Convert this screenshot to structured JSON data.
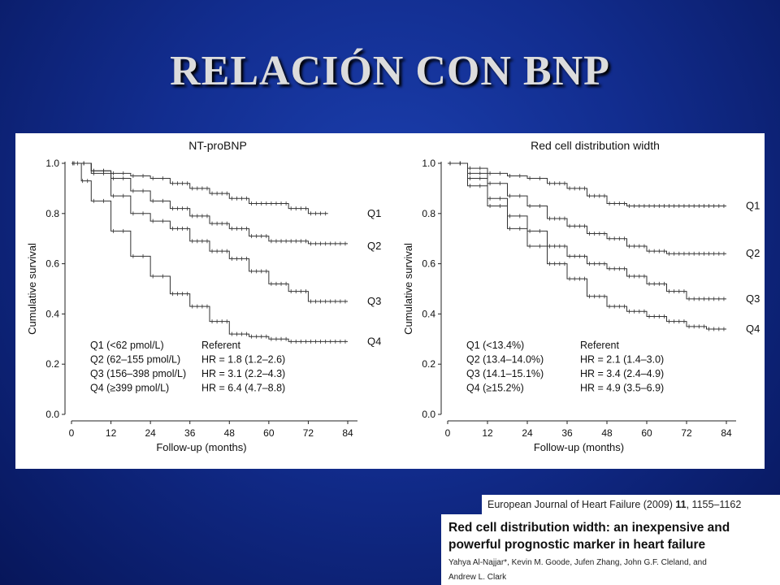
{
  "slide": {
    "title": "RELACIÓN CON BNP"
  },
  "reference": {
    "journal": "European Journal of Heart Failure (2009)",
    "volume": "11",
    "pages": ", 1155–1162",
    "article_title_line1": "Red cell distribution width: an inexpensive and",
    "article_title_line2": "powerful prognostic marker in heart failure",
    "authors_line1": "Yahya Al-Najjar*, Kevin M. Goode, Jufen Zhang, John G.F. Cleland, and",
    "authors_line2": "Andrew L. Clark"
  },
  "chart_data": [
    {
      "type": "line",
      "title": "NT-proBNP",
      "xlabel": "Follow-up (months)",
      "ylabel": "Cumulative survival",
      "xlim": [
        0,
        84
      ],
      "ylim": [
        0.0,
        1.0
      ],
      "xticks": [
        "0",
        "12",
        "24",
        "36",
        "48",
        "60",
        "72",
        "84"
      ],
      "yticks": [
        "0.0",
        "0.2",
        "0.4",
        "0.6",
        "0.8",
        "1.0"
      ],
      "legend": [
        {
          "group": "Q1 (<62 pmol/L)",
          "hr": "Referent"
        },
        {
          "group": "Q2 (62–155 pmol/L)",
          "hr": "HR = 1.8 (1.2–2.6)"
        },
        {
          "group": "Q3 (156–398 pmol/L)",
          "hr": "HR = 3.1 (2.2–4.3)"
        },
        {
          "group": "Q4 (≥399 pmol/L)",
          "hr": "HR = 6.4 (4.7–8.8)"
        }
      ],
      "series": [
        {
          "name": "Q1",
          "x": [
            0,
            6,
            12,
            18,
            24,
            30,
            36,
            42,
            48,
            54,
            60,
            66,
            72,
            78
          ],
          "y": [
            1.0,
            0.97,
            0.96,
            0.95,
            0.94,
            0.92,
            0.9,
            0.88,
            0.86,
            0.84,
            0.84,
            0.82,
            0.8,
            0.8
          ]
        },
        {
          "name": "Q2",
          "x": [
            0,
            6,
            12,
            18,
            24,
            30,
            36,
            42,
            48,
            54,
            60,
            66,
            72,
            78,
            84
          ],
          "y": [
            1.0,
            0.97,
            0.94,
            0.89,
            0.85,
            0.82,
            0.79,
            0.76,
            0.74,
            0.71,
            0.69,
            0.69,
            0.68,
            0.68,
            0.68
          ]
        },
        {
          "name": "Q3",
          "x": [
            0,
            6,
            12,
            18,
            24,
            30,
            36,
            42,
            48,
            54,
            60,
            66,
            72,
            78,
            84
          ],
          "y": [
            1.0,
            0.96,
            0.87,
            0.8,
            0.77,
            0.74,
            0.69,
            0.65,
            0.62,
            0.57,
            0.52,
            0.49,
            0.45,
            0.45,
            0.45
          ]
        },
        {
          "name": "Q4",
          "x": [
            0,
            3,
            6,
            12,
            18,
            24,
            30,
            36,
            42,
            48,
            54,
            60,
            66,
            72,
            78,
            84
          ],
          "y": [
            1.0,
            0.93,
            0.85,
            0.73,
            0.63,
            0.55,
            0.48,
            0.43,
            0.37,
            0.32,
            0.31,
            0.3,
            0.29,
            0.29,
            0.29,
            0.29
          ]
        }
      ]
    },
    {
      "type": "line",
      "title": "Red cell distribution width",
      "xlabel": "Follow-up (months)",
      "ylabel": "Cumulative survival",
      "xlim": [
        0,
        84
      ],
      "ylim": [
        0.0,
        1.0
      ],
      "xticks": [
        "0",
        "12",
        "24",
        "36",
        "48",
        "60",
        "72",
        "84"
      ],
      "yticks": [
        "0.0",
        "0.2",
        "0.4",
        "0.6",
        "0.8",
        "1.0"
      ],
      "legend": [
        {
          "group": "Q1 (<13.4%)",
          "hr": "Referent"
        },
        {
          "group": "Q2 (13.4–14.0%)",
          "hr": "HR = 2.1 (1.4–3.0)"
        },
        {
          "group": "Q3 (14.1–15.1%)",
          "hr": "HR = 3.4 (2.4–4.9)"
        },
        {
          "group": "Q4 (≥15.2%)",
          "hr": "HR = 4.9 (3.5–6.9)"
        }
      ],
      "series": [
        {
          "name": "Q1",
          "x": [
            0,
            6,
            12,
            18,
            24,
            30,
            36,
            42,
            48,
            54,
            60,
            66,
            72,
            78,
            84
          ],
          "y": [
            1.0,
            0.98,
            0.96,
            0.95,
            0.94,
            0.92,
            0.9,
            0.87,
            0.84,
            0.83,
            0.83,
            0.83,
            0.83,
            0.83,
            0.83
          ]
        },
        {
          "name": "Q2",
          "x": [
            0,
            6,
            12,
            18,
            24,
            30,
            36,
            42,
            48,
            54,
            60,
            66,
            72,
            78,
            84
          ],
          "y": [
            1.0,
            0.96,
            0.92,
            0.87,
            0.83,
            0.78,
            0.75,
            0.72,
            0.7,
            0.67,
            0.65,
            0.64,
            0.64,
            0.64,
            0.64
          ]
        },
        {
          "name": "Q3",
          "x": [
            0,
            6,
            12,
            18,
            24,
            30,
            36,
            42,
            48,
            54,
            60,
            66,
            72,
            78,
            84
          ],
          "y": [
            1.0,
            0.94,
            0.86,
            0.79,
            0.73,
            0.67,
            0.63,
            0.6,
            0.58,
            0.55,
            0.52,
            0.49,
            0.46,
            0.46,
            0.46
          ]
        },
        {
          "name": "Q4",
          "x": [
            0,
            6,
            12,
            18,
            24,
            30,
            36,
            42,
            48,
            54,
            60,
            66,
            72,
            78,
            84
          ],
          "y": [
            1.0,
            0.91,
            0.83,
            0.74,
            0.67,
            0.6,
            0.54,
            0.47,
            0.43,
            0.41,
            0.39,
            0.37,
            0.35,
            0.34,
            0.34
          ]
        }
      ]
    }
  ]
}
